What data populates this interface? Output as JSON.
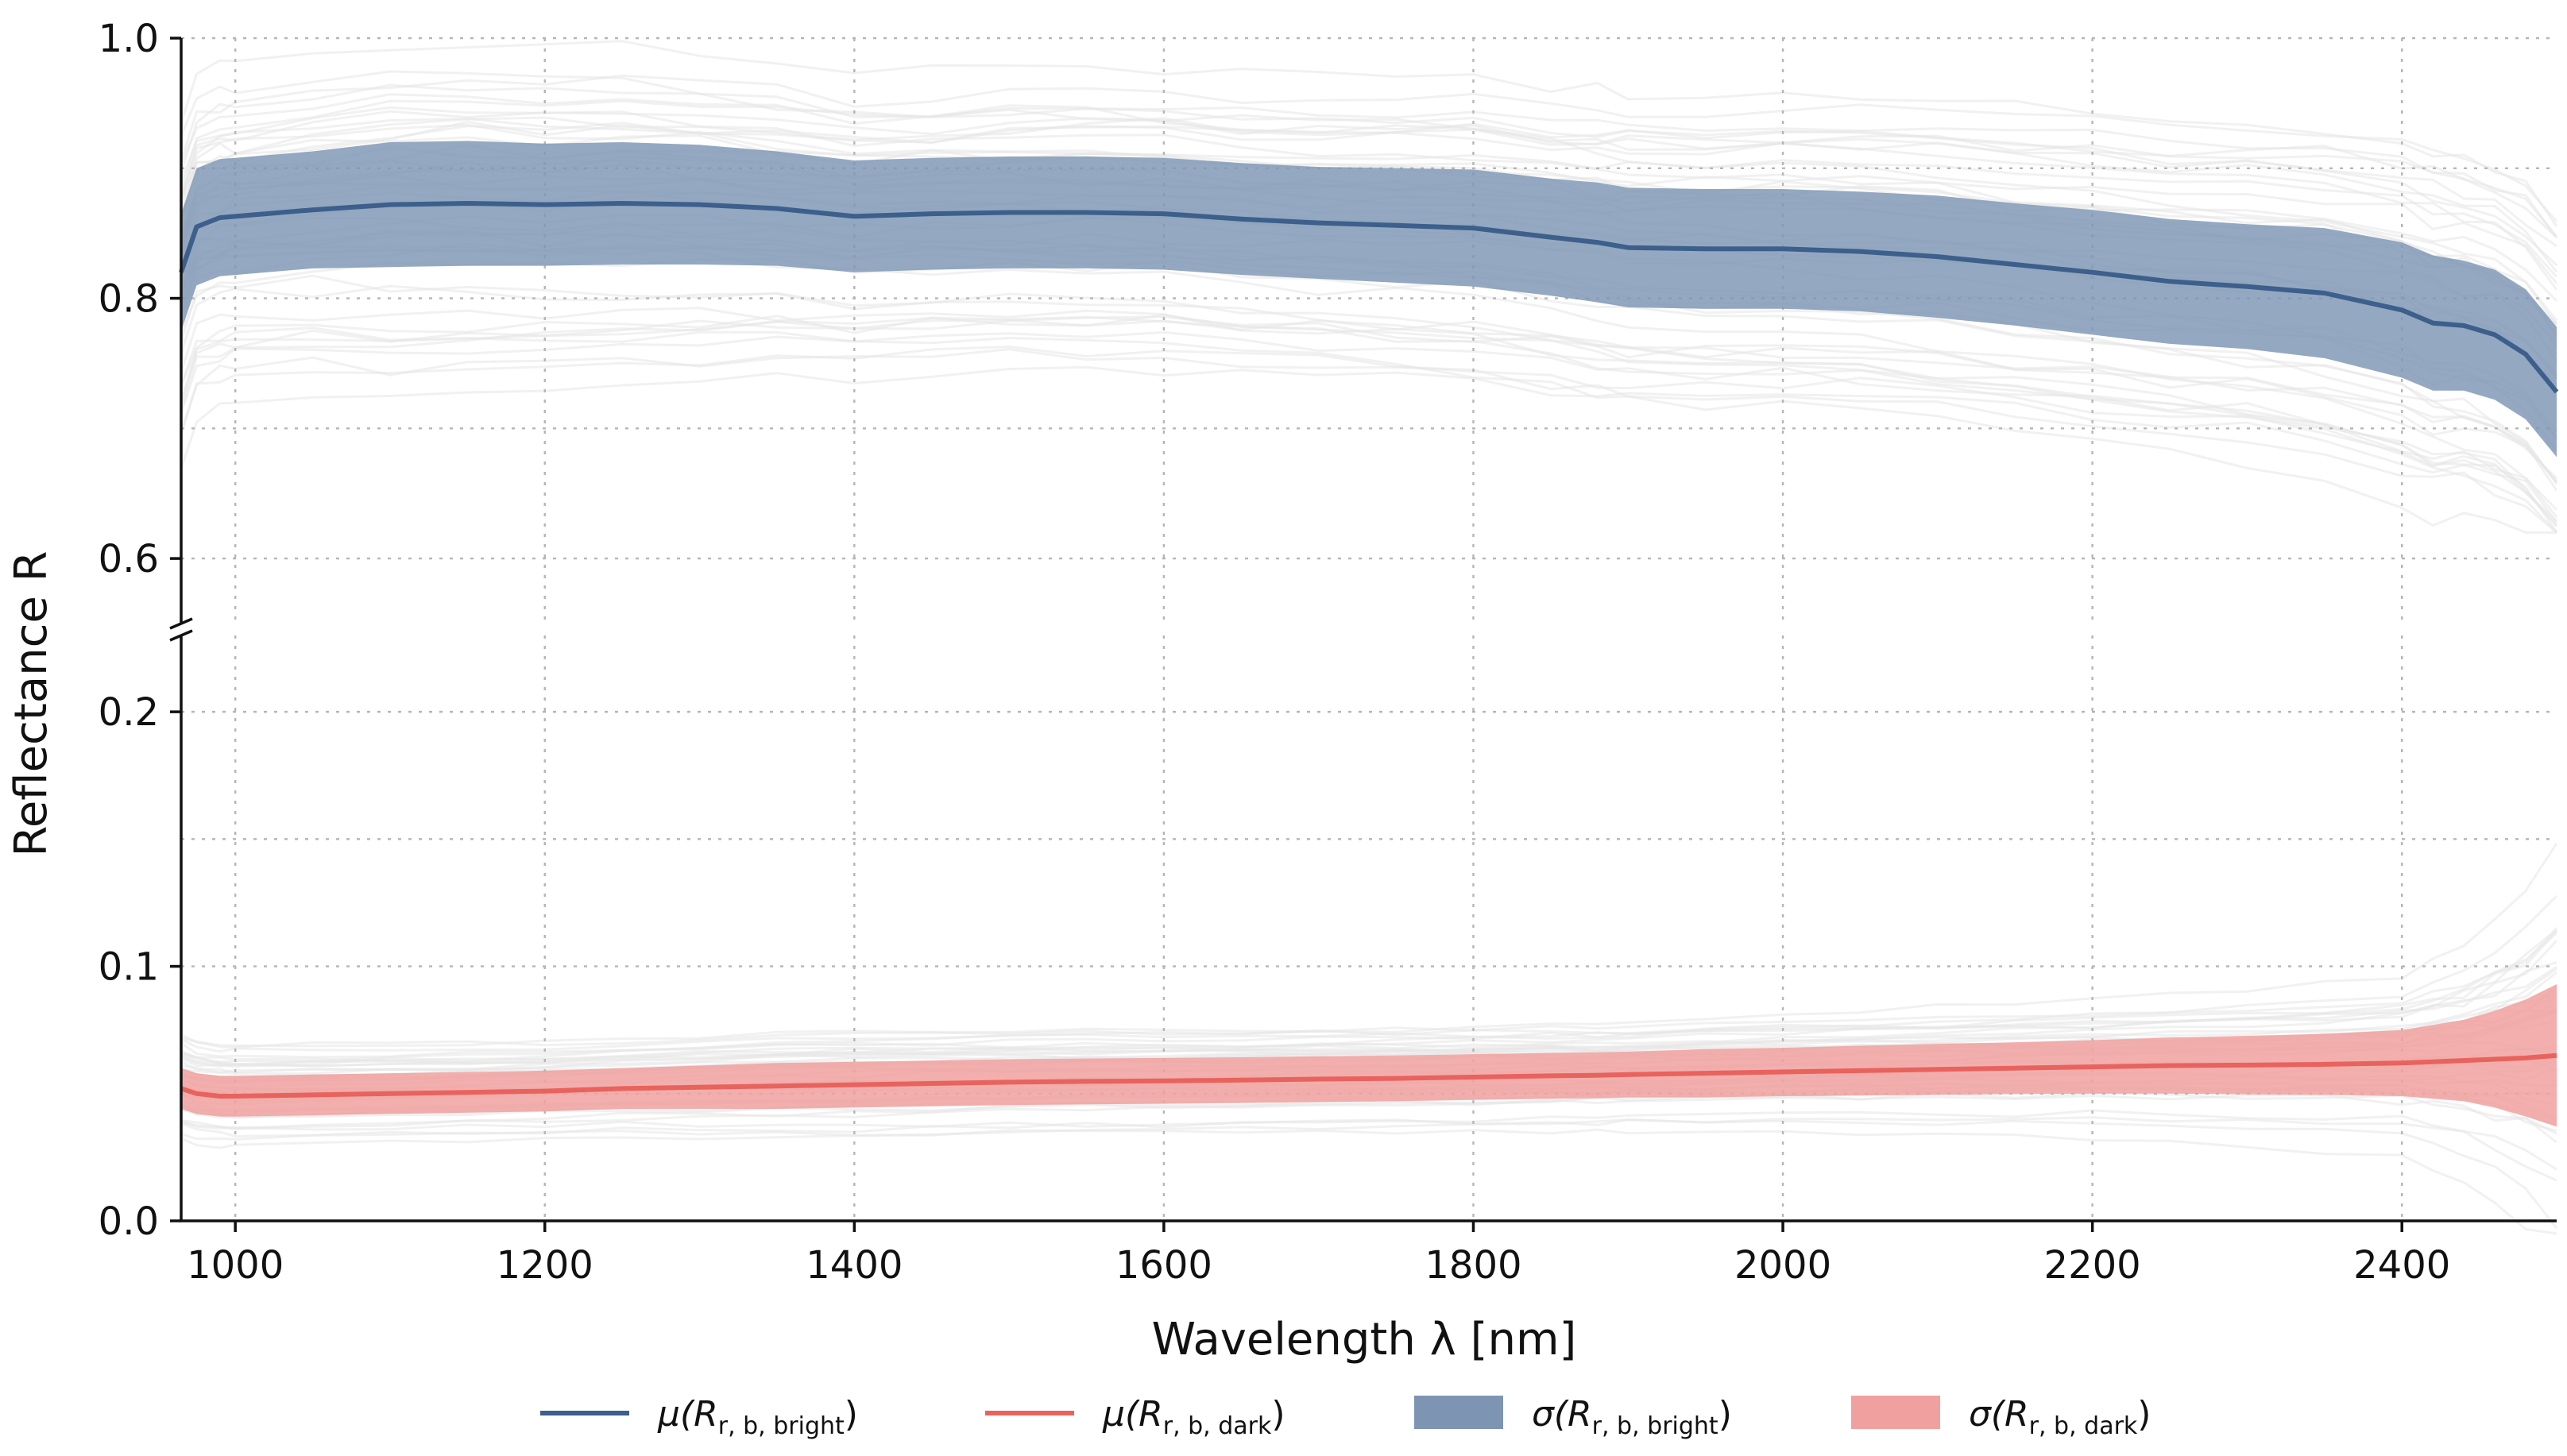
{
  "chart_data": {
    "type": "line",
    "title": "",
    "xlabel": "Wavelength λ [nm]",
    "ylabel": "Reflectance R",
    "xlim": [
      965,
      2500
    ],
    "ylim_upper": [
      0.55,
      1.0
    ],
    "ylim_lower": [
      0.0,
      0.23
    ],
    "broken_y_axis": true,
    "xticks": [
      1000,
      1200,
      1400,
      1600,
      1800,
      2000,
      2200,
      2400
    ],
    "xtick_labels": [
      "1000",
      "1200",
      "1400",
      "1600",
      "1800",
      "2000",
      "2200",
      "2400"
    ],
    "yticks_upper": [
      0.6,
      0.8,
      1.0
    ],
    "ytick_labels_upper": [
      "0.6",
      "0.8",
      "1.0"
    ],
    "yticks_lower": [
      0.0,
      0.1,
      0.2
    ],
    "ytick_labels_lower": [
      "0.0",
      "0.1",
      "0.2"
    ],
    "minor_grid_y_upper": [
      0.7,
      0.9
    ],
    "minor_grid_y_lower": [
      0.05,
      0.15
    ],
    "grid": true,
    "legend_position": "bottom",
    "colors": {
      "bright": "#3c5f8b",
      "bright_band": "#7d95b3",
      "dark": "#e8625e",
      "dark_band": "#f0a19f",
      "samples": "#e4e4e4"
    },
    "x": [
      965,
      975,
      990,
      1000,
      1050,
      1100,
      1150,
      1200,
      1250,
      1300,
      1350,
      1400,
      1450,
      1500,
      1550,
      1600,
      1650,
      1700,
      1750,
      1800,
      1850,
      1880,
      1900,
      1950,
      2000,
      2050,
      2100,
      2150,
      2200,
      2250,
      2300,
      2350,
      2400,
      2420,
      2440,
      2460,
      2480,
      2500
    ],
    "series": [
      {
        "name": "μ(R r, b, bright)",
        "kind": "mean",
        "values": [
          0.82,
          0.855,
          0.862,
          0.863,
          0.868,
          0.872,
          0.873,
          0.872,
          0.873,
          0.872,
          0.869,
          0.863,
          0.865,
          0.866,
          0.866,
          0.865,
          0.861,
          0.858,
          0.856,
          0.854,
          0.847,
          0.843,
          0.839,
          0.838,
          0.838,
          0.836,
          0.832,
          0.826,
          0.82,
          0.813,
          0.809,
          0.804,
          0.791,
          0.781,
          0.779,
          0.772,
          0.757,
          0.728
        ],
        "std": [
          0.045,
          0.045,
          0.045,
          0.045,
          0.045,
          0.048,
          0.048,
          0.047,
          0.047,
          0.046,
          0.044,
          0.043,
          0.043,
          0.043,
          0.043,
          0.043,
          0.043,
          0.043,
          0.044,
          0.045,
          0.045,
          0.046,
          0.046,
          0.046,
          0.046,
          0.046,
          0.047,
          0.047,
          0.048,
          0.048,
          0.048,
          0.05,
          0.052,
          0.052,
          0.05,
          0.05,
          0.05,
          0.05
        ]
      },
      {
        "name": "μ(R r, b, dark)",
        "kind": "mean",
        "values": [
          0.052,
          0.05,
          0.049,
          0.049,
          0.0495,
          0.05,
          0.0505,
          0.051,
          0.052,
          0.0525,
          0.053,
          0.0535,
          0.054,
          0.0545,
          0.0548,
          0.055,
          0.0553,
          0.0557,
          0.056,
          0.0565,
          0.057,
          0.0572,
          0.0575,
          0.058,
          0.0585,
          0.059,
          0.0595,
          0.06,
          0.0605,
          0.061,
          0.0612,
          0.0615,
          0.062,
          0.0625,
          0.063,
          0.0635,
          0.064,
          0.065
        ],
        "std": [
          0.008,
          0.008,
          0.008,
          0.008,
          0.008,
          0.008,
          0.008,
          0.008,
          0.008,
          0.0085,
          0.009,
          0.009,
          0.009,
          0.009,
          0.009,
          0.009,
          0.009,
          0.009,
          0.009,
          0.009,
          0.009,
          0.009,
          0.009,
          0.0095,
          0.0095,
          0.0098,
          0.01,
          0.0102,
          0.0105,
          0.011,
          0.0115,
          0.012,
          0.013,
          0.0145,
          0.016,
          0.019,
          0.023,
          0.028
        ]
      }
    ],
    "legend": [
      {
        "key": "bright_mean",
        "symbol": "μ",
        "label": "μ(R",
        "sub": "r, b, bright",
        "close": ")",
        "style": "line"
      },
      {
        "key": "dark_mean",
        "symbol": "μ",
        "label": "μ(R",
        "sub": "r, b, dark",
        "close": ")",
        "style": "line"
      },
      {
        "key": "bright_std",
        "symbol": "σ",
        "label": "σ(R",
        "sub": "r, b, bright",
        "close": ")",
        "style": "patch"
      },
      {
        "key": "dark_std",
        "symbol": "σ",
        "label": "σ(R",
        "sub": "r, b, dark",
        "close": ")",
        "style": "patch"
      }
    ],
    "background_samples": "individual spectra shown as faint gray lines"
  }
}
